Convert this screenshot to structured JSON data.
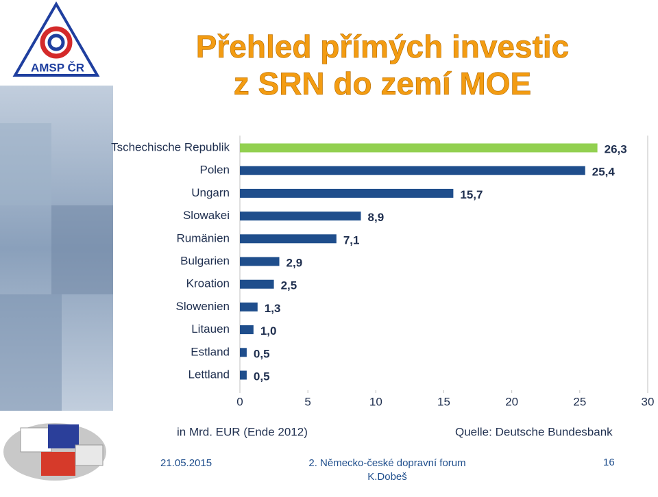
{
  "slide": {
    "logo_text": "AMSP ČR",
    "title_lines": [
      "Přehled přímých investic",
      "z SRN do zemí MOE"
    ],
    "unit_note": "in Mrd. EUR (Ende 2012)",
    "source": "Quelle: Deutsche Bundesbank",
    "date": "21.05.2015",
    "event_lines": [
      "2. Německo-české dopravní forum",
      "K.Dobeš"
    ],
    "page": "16"
  },
  "chart_data": {
    "type": "hbar",
    "categories": [
      "Tschechische Republik",
      "Polen",
      "Ungarn",
      "Slowakei",
      "Rumänien",
      "Bulgarien",
      "Kroation",
      "Slowenien",
      "Litauen",
      "Estland",
      "Lettland"
    ],
    "values": [
      26.3,
      25.4,
      15.7,
      8.9,
      7.1,
      2.9,
      2.5,
      1.3,
      1.0,
      0.5,
      0.5
    ],
    "value_labels": [
      "26,3",
      "25,4",
      "15,7",
      "8,9",
      "7,1",
      "2,9",
      "2,5",
      "1,3",
      "1,0",
      "0,5",
      "0,5"
    ],
    "colors": [
      "#92d050",
      "#1f4e8c",
      "#1f4e8c",
      "#1f4e8c",
      "#1f4e8c",
      "#1f4e8c",
      "#1f4e8c",
      "#1f4e8c",
      "#1f4e8c",
      "#1f4e8c",
      "#1f4e8c"
    ],
    "xlim": [
      0,
      30
    ],
    "xticks": [
      0,
      5,
      10,
      15,
      20,
      25,
      30
    ]
  }
}
